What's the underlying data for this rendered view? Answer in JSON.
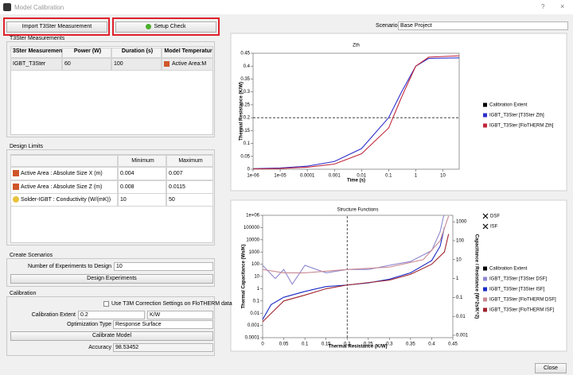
{
  "window": {
    "title": "Model Calibration",
    "help": "?",
    "close": "×"
  },
  "toolbar": {
    "import_button": "Import T3Ster Measurement",
    "setup_button": "Setup Check",
    "scenario_label": "Scenario",
    "scenario_value": "Base Project"
  },
  "measurements": {
    "title": "T3Ster Measurements",
    "headers": [
      "3Ster Measuremen",
      "Power (W)",
      "Duration (s)",
      "Model Temperatur"
    ],
    "rows": [
      [
        "IGBT_T3Ster",
        60,
        100,
        "Active Area:M"
      ]
    ]
  },
  "design_limits": {
    "title": "Design Limits",
    "headers": [
      "Minimum",
      "Maximum"
    ],
    "rows": [
      [
        "Active Area : Absolute Size X (m)",
        0.004,
        0.007
      ],
      [
        "Active Area : Absolute Size Z (m)",
        0.008,
        0.0115
      ],
      [
        "Solder-IGBT : Conductivity (W/(mK))",
        10,
        50
      ]
    ]
  },
  "create_scenarios": {
    "title": "Create Scenarios",
    "experiments_label": "Number of Experiments to Design",
    "experiments_value": 10,
    "design_button": "Design Experiments"
  },
  "calibration": {
    "title": "Calibration",
    "checkbox_label": "Use T3M Correction Settings on FloTHERM data",
    "extent_label": "Calibration Extent",
    "extent_value": 0.2,
    "extent_unit": "K/W",
    "optimization_label": "Optimization Type",
    "optimization_value": "Response Surface",
    "calibrate_button": "Calibrate Model",
    "accuracy_label": "Accuracy",
    "accuracy_value": 98.53452
  },
  "footer": {
    "close_button": "Close"
  },
  "chart_data": [
    {
      "type": "line",
      "title": "Zth",
      "xlabel": "Time (s)",
      "ylabel": "Thermal Resistance (K/W)",
      "xscale": "log",
      "xlim": [
        1e-06,
        40
      ],
      "ylim": [
        0,
        0.45
      ],
      "xticks": [
        {
          "value": 1e-06,
          "label": "1e-06"
        },
        {
          "value": 1e-05,
          "label": "1e-05"
        },
        0.0001,
        0.001,
        0.01,
        0.1,
        1,
        10
      ],
      "yticks": [
        0,
        0.05,
        0.1,
        0.15,
        0.2,
        0.25,
        0.3,
        0.35,
        0.4,
        0.45
      ],
      "legend": "right",
      "series": [
        {
          "name": "Calibration Extent",
          "color": "#000000",
          "dashed": true,
          "x": [
            1e-06,
            40
          ],
          "values": [
            0.2,
            0.2
          ]
        },
        {
          "name": "IGBT_T3Ster [T3Ster Zth]",
          "color": "#2f2fcc",
          "x": [
            1e-06,
            1e-05,
            0.0001,
            0.001,
            0.01,
            0.1,
            0.3,
            1,
            3,
            40
          ],
          "values": [
            0.002,
            0.005,
            0.012,
            0.03,
            0.08,
            0.2,
            0.3,
            0.4,
            0.43,
            0.432
          ]
        },
        {
          "name": "IGBT_T3Ster [FloTHERM Zth]",
          "color": "#c0283c",
          "x": [
            1e-06,
            1e-05,
            0.0001,
            0.001,
            0.01,
            0.1,
            0.3,
            1,
            3,
            40
          ],
          "values": [
            0.001,
            0.003,
            0.008,
            0.02,
            0.06,
            0.16,
            0.28,
            0.4,
            0.435,
            0.44
          ]
        }
      ]
    },
    {
      "type": "line",
      "title": "Structure Functions",
      "xlabel": "Thermal Resistance (K/W)",
      "ylabel": "Thermal Capacitance (Ws/K)",
      "y2label": "Capacitance / Resistance (W^2s/K^2)",
      "yscale": "log",
      "y2scale": "log",
      "xlim": [
        0,
        0.45
      ],
      "ylim": [
        0.0001,
        1000000
      ],
      "y2lim": [
        0.00075,
        2200
      ],
      "xticks": [
        0,
        0.05,
        0.1,
        0.15,
        0.2,
        0.25,
        0.3,
        0.35,
        0.4,
        0.45
      ],
      "yticks": [
        0.0001,
        0.001,
        0.01,
        0.1,
        1,
        10,
        100,
        1000,
        10000,
        100000,
        {
          "value": 1000000,
          "label": "1e+06"
        }
      ],
      "y2ticks": [
        0.001,
        0.01,
        0.1,
        1,
        10,
        100,
        1000
      ],
      "legend": "right",
      "marker_legend": [
        "DSF",
        "ISF"
      ],
      "series": [
        {
          "name": "Calibration Extent",
          "color": "#000000",
          "dashed": true,
          "x": [
            0.2,
            0.2
          ],
          "values": [
            0.0001,
            1000000
          ]
        },
        {
          "name": "IGBT_T3Ster [T3Ster DSF]",
          "color": "#8f87cf",
          "axis": "y2",
          "x": [
            0,
            0.03,
            0.05,
            0.07,
            0.1,
            0.15,
            0.2,
            0.25,
            0.3,
            0.35,
            0.4,
            0.42,
            0.43
          ],
          "values": [
            5,
            1,
            3,
            0.5,
            5,
            2,
            3,
            3,
            5,
            8,
            30,
            300,
            3000
          ]
        },
        {
          "name": "IGBT_T3Ster [T3Ster ISF]",
          "color": "#1b2bc4",
          "x": [
            0,
            0.02,
            0.05,
            0.1,
            0.15,
            0.2,
            0.25,
            0.3,
            0.35,
            0.4,
            0.42,
            0.43
          ],
          "values": [
            0.003,
            0.05,
            0.2,
            0.6,
            1.5,
            2,
            3,
            6,
            20,
            200,
            3000,
            100000
          ]
        },
        {
          "name": "IGBT_T3Ster [FloTHERM DSF]",
          "color": "#c98a92",
          "axis": "y2",
          "x": [
            0,
            0.05,
            0.1,
            0.2,
            0.3,
            0.38,
            0.42,
            0.44
          ],
          "values": [
            3,
            2,
            2,
            3,
            4,
            10,
            100,
            2000
          ]
        },
        {
          "name": "IGBT_T3Ster [FloTHERM ISF]",
          "color": "#a0242e",
          "x": [
            0,
            0.05,
            0.1,
            0.15,
            0.2,
            0.3,
            0.35,
            0.4,
            0.43,
            0.44
          ],
          "values": [
            0.002,
            0.1,
            0.3,
            1,
            2,
            5,
            15,
            100,
            1000,
            30000
          ]
        }
      ]
    }
  ]
}
